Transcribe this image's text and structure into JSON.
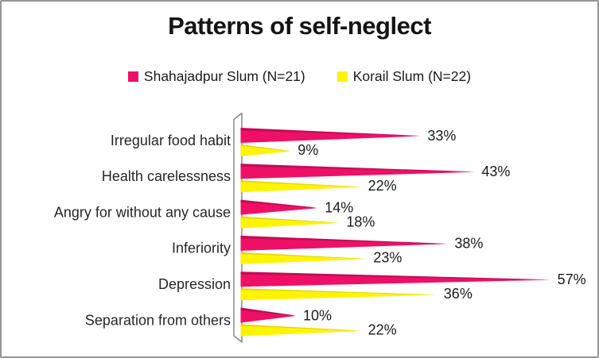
{
  "title": "Patterns of self-neglect",
  "legend": [
    {
      "label": "Shahajadpur Slum (N=21)",
      "color": "#EE1066"
    },
    {
      "label": "Korail Slum (N=22)",
      "color": "#FEF400"
    }
  ],
  "chart_data": {
    "type": "bar",
    "orientation": "horizontal",
    "bar_shape": "tapered-pyramid-3d",
    "title": "Patterns of self-neglect",
    "categories": [
      "Irregular food habit",
      "Health carelessness",
      "Angry for without any cause",
      "Inferiority",
      "Depression",
      "Separation from others"
    ],
    "series": [
      {
        "name": "Shahajadpur Slum (N=21)",
        "values": [
          33,
          43,
          14,
          38,
          57,
          10
        ],
        "color": "#EE1066",
        "color_dark": "#C30C55"
      },
      {
        "name": "Korail Slum (N=22)",
        "values": [
          9,
          22,
          18,
          23,
          36,
          22
        ],
        "color": "#FEF400",
        "color_dark": "#E3D506"
      }
    ],
    "value_suffix": "%",
    "data_labels": true,
    "xlim": [
      0,
      60
    ],
    "grid": false,
    "legend_position": "top",
    "axis_wall_color": "#8A8A8A",
    "label_color": "#1a1a1a"
  }
}
